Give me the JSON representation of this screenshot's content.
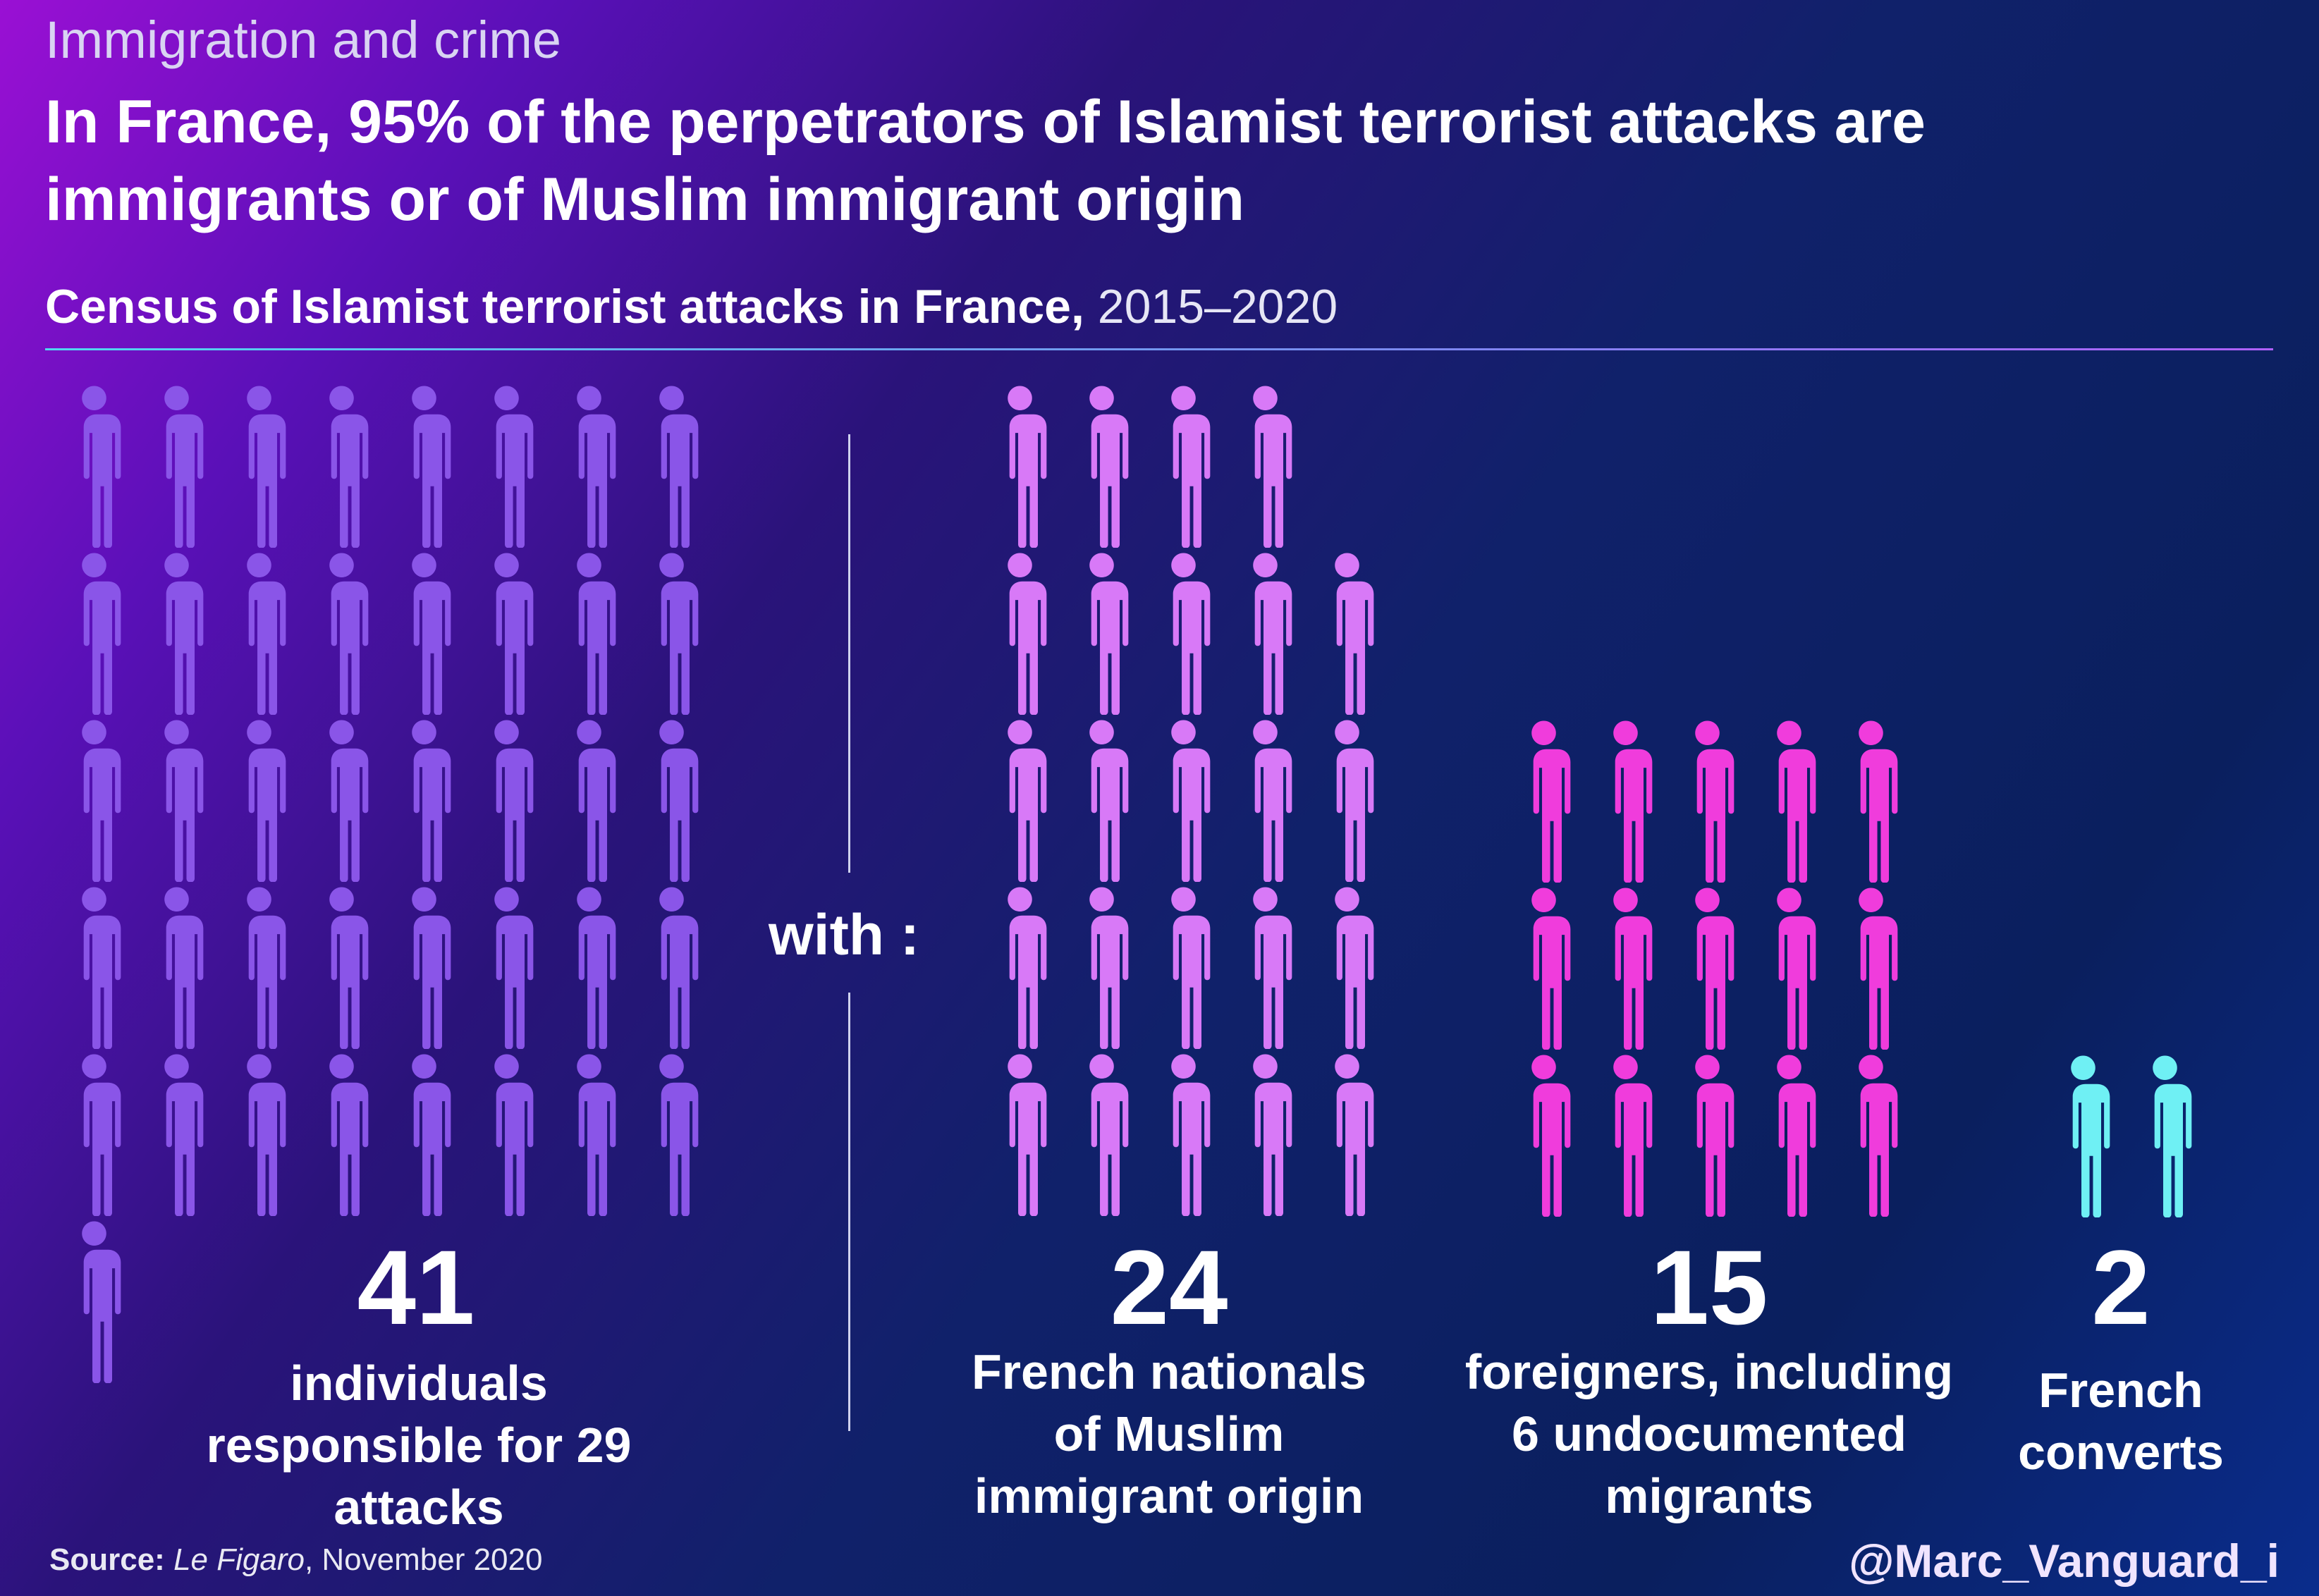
{
  "kicker": "Immigration and crime",
  "headline": "In France, 95% of the perpetrators of Islamist terrorist attacks are immigrants or of Muslim immigrant origin",
  "subtitle": {
    "bold": "Census of Islamist terrorist attacks in France,",
    "range": "2015–2020"
  },
  "with_label": "with :",
  "source": {
    "label": "Source:",
    "publication": "Le Figaro",
    "date": ", November 2020"
  },
  "handle": "@Marc_Vanguard_i",
  "colors": {
    "total": "#8a55e8",
    "french_muslim_origin": "#d879f7",
    "foreigners": "#f03cdc",
    "converts": "#6ff0f4"
  },
  "chart_data": {
    "type": "pictogram",
    "unit": "one figure = one individual",
    "categories": [
      {
        "key": "total",
        "count": 41,
        "number": "41",
        "label": "individuals\nresponsible for 29\nattacks"
      },
      {
        "key": "french_muslim_origin",
        "count": 24,
        "number": "24",
        "label": "French nationals\nof Muslim\nimmigrant origin"
      },
      {
        "key": "foreigners",
        "count": 15,
        "number": "15",
        "label": "foreigners, including\n6 undocumented\nmigrants"
      },
      {
        "key": "converts",
        "count": 2,
        "number": "2",
        "label": "French\nconverts"
      }
    ]
  }
}
